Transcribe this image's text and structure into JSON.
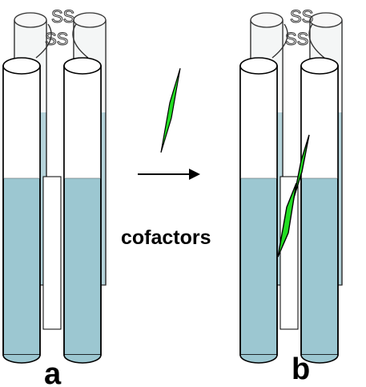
{
  "labels": {
    "left_panel": "a",
    "right_panel": "b",
    "arrow_caption": "cofactors",
    "disulfide": "SS"
  },
  "colors": {
    "helix_lower": "#9cc7d1",
    "helix_upper": "#ffffff",
    "outline": "#000000",
    "cofactor": "#22dd22"
  },
  "icons": {
    "cofactor": "green-parallelogram",
    "arrow": "right-arrow"
  }
}
